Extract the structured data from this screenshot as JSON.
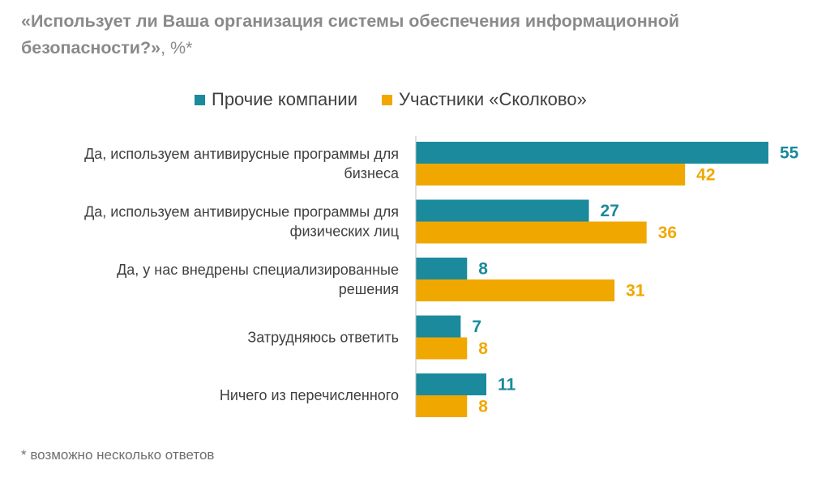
{
  "header": {
    "title": "«Использует ли Ваша организация системы обеспечения информационной безопасности?»",
    "title_suffix": ", %*"
  },
  "footnote": "* возможно несколько ответов",
  "colors": {
    "series_1": "#1a8a9c",
    "series_2": "#f0a800"
  },
  "chart_data": {
    "type": "bar",
    "orientation": "horizontal",
    "categories": [
      [
        "Да, используем антивирусные программы для",
        "бизнеса"
      ],
      [
        "Да, используем антивирусные программы для",
        "физических лиц"
      ],
      [
        "Да, у нас внедрены специализированные",
        "решения"
      ],
      [
        "Затрудняюсь ответить"
      ],
      [
        "Ничего из перечисленного"
      ]
    ],
    "series": [
      {
        "name": "Прочие компании",
        "values": [
          55,
          27,
          8,
          7,
          11
        ],
        "color": "#1a8a9c"
      },
      {
        "name": "Участники «Сколково»",
        "values": [
          42,
          36,
          31,
          8,
          8
        ],
        "color": "#f0a800"
      }
    ],
    "xlim": [
      0,
      55
    ],
    "legend": "top",
    "grid": false,
    "data_labels": true
  }
}
